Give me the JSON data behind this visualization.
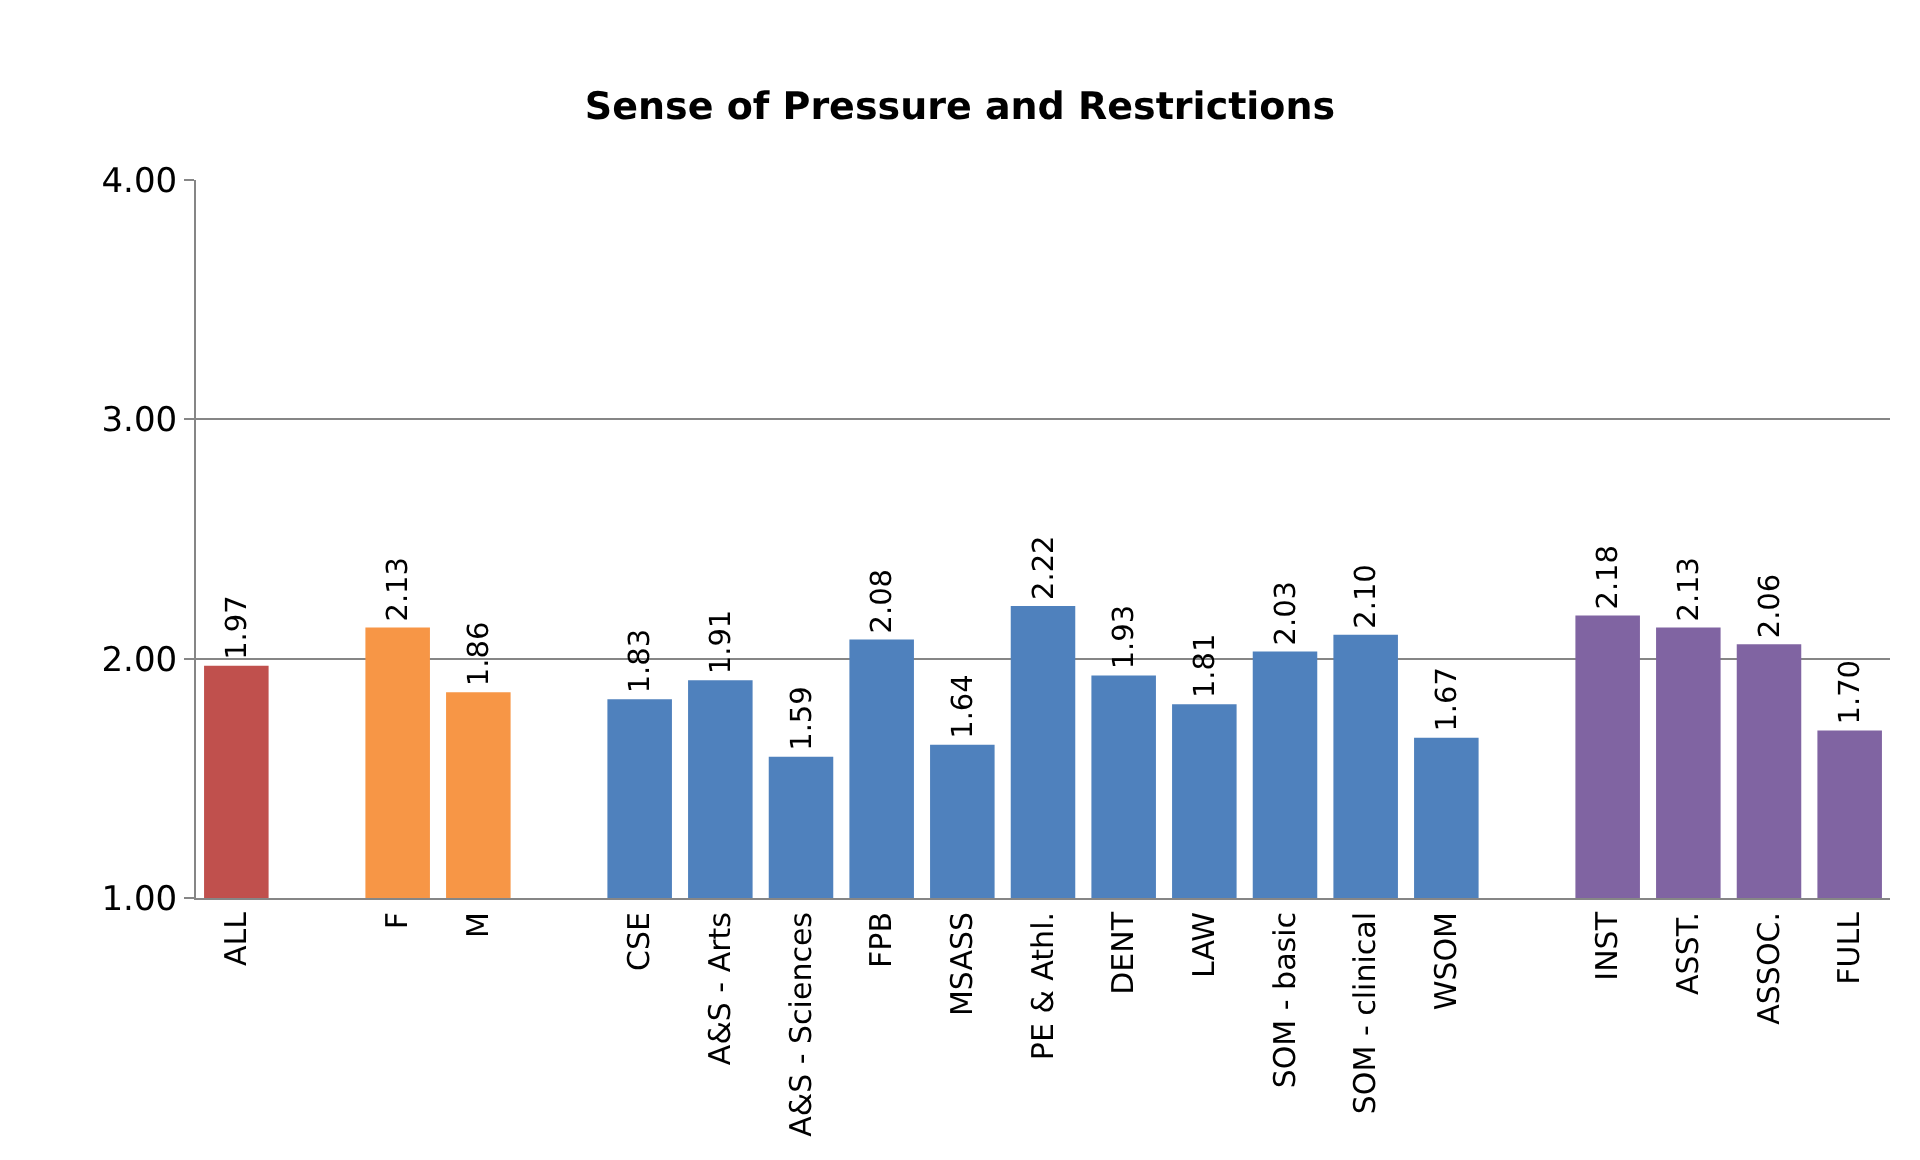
{
  "chart_data": {
    "type": "bar",
    "title": "Sense of Pressure and Restrictions",
    "categories": [
      "ALL",
      null,
      "F",
      "M",
      null,
      "CSE",
      "A&S - Arts",
      "A&S - Sciences",
      "FPB",
      "MSASS",
      "PE & Athl.",
      "DENT",
      "LAW",
      "SOM - basic",
      "SOM - clinical",
      "WSOM",
      null,
      "INST",
      "ASST.",
      "ASSOC.",
      "FULL"
    ],
    "values": [
      1.97,
      null,
      2.13,
      1.86,
      null,
      1.83,
      1.91,
      1.59,
      2.08,
      1.64,
      2.22,
      1.93,
      1.81,
      2.03,
      2.1,
      1.67,
      null,
      2.18,
      2.13,
      2.06,
      1.7
    ],
    "value_labels": [
      "1.97",
      null,
      "2.13",
      "1.86",
      null,
      "1.83",
      "1.91",
      "1.59",
      "2.08",
      "1.64",
      "2.22",
      "1.93",
      "1.81",
      "2.03",
      "2.10",
      "1.67",
      null,
      "2.18",
      "2.13",
      "2.06",
      "1.70"
    ],
    "colors": [
      "#c0504d",
      null,
      "#f79646",
      "#f79646",
      null,
      "#4f81bd",
      "#4f81bd",
      "#4f81bd",
      "#4f81bd",
      "#4f81bd",
      "#4f81bd",
      "#4f81bd",
      "#4f81bd",
      "#4f81bd",
      "#4f81bd",
      "#4f81bd",
      null,
      "#8064a2",
      "#8064a2",
      "#8064a2",
      "#8064a2"
    ],
    "ylim": [
      1,
      4
    ],
    "yticks": [
      {
        "value": 1,
        "label": "1.00"
      },
      {
        "value": 2,
        "label": "2.00"
      },
      {
        "value": 3,
        "label": "3.00"
      },
      {
        "value": 4,
        "label": "4.00"
      }
    ],
    "grid": "y"
  }
}
